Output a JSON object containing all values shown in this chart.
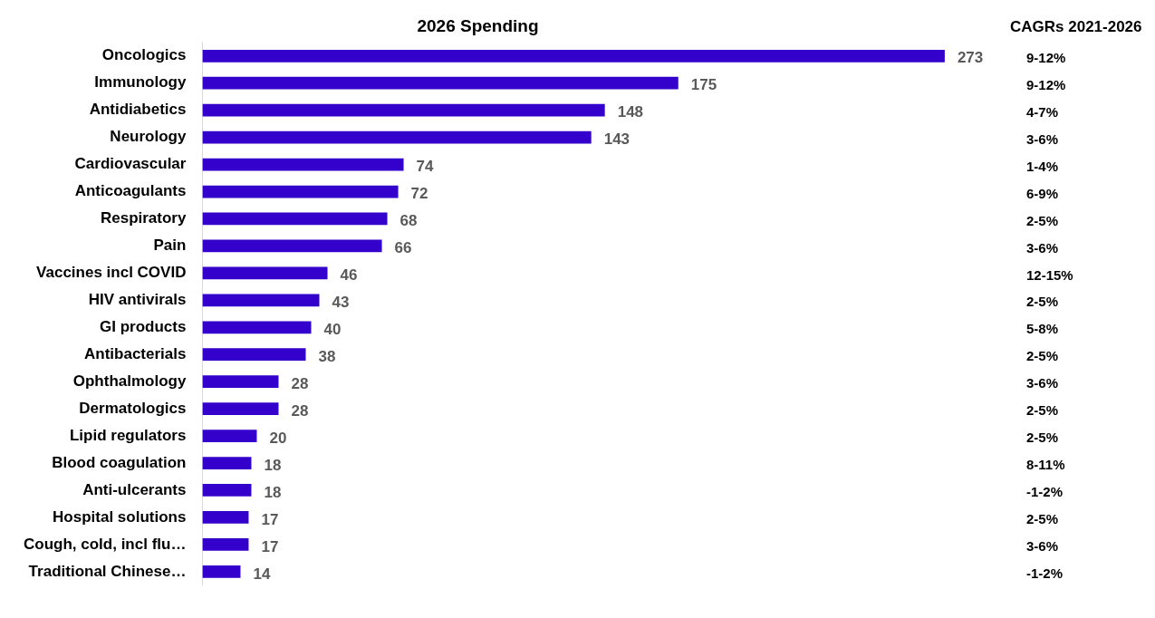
{
  "chart_data": {
    "type": "bar",
    "orientation": "horizontal",
    "title": "2026 Spending",
    "categories": [
      "Oncologics",
      "Immunology",
      "Antidiabetics",
      "Neurology",
      "Cardiovascular",
      "Anticoagulants",
      "Respiratory",
      "Pain",
      "Vaccines incl COVID",
      "HIV antivirals",
      "GI products",
      "Antibacterials",
      "Ophthalmology",
      "Dermatologics",
      "Lipid regulators",
      "Blood coagulation",
      "Anti-ulcerants",
      "Hospital solutions",
      "Cough, cold, incl flu…",
      "Traditional Chinese…"
    ],
    "values": [
      273,
      175,
      148,
      143,
      74,
      72,
      68,
      66,
      46,
      43,
      40,
      38,
      28,
      28,
      20,
      18,
      18,
      17,
      17,
      14
    ],
    "color": "#3300cc",
    "data_labels": true,
    "legend": false,
    "annotations": [
      "CAGRs 2021-2026",
      "9-12%",
      "9-12%",
      "4-7%",
      "3-6%",
      "1-4%",
      "6-9%",
      "2-5%",
      "3-6%",
      "12-15%",
      "2-5%",
      "5-8%",
      "2-5%",
      "3-6%",
      "2-5%",
      "2-5%",
      "8-11%",
      "-1-2%",
      "2-5%",
      "3-6%",
      "-1-2%"
    ]
  }
}
